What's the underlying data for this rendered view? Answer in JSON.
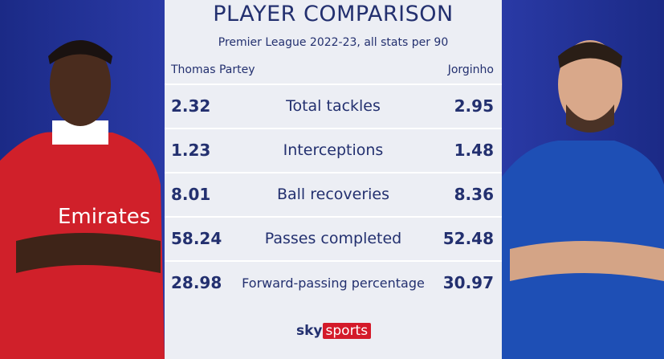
{
  "header": {
    "title": "PLAYER COMPARISON",
    "subtitle": "Premier League 2022-23, all stats per 90"
  },
  "players": {
    "left": "Thomas Partey",
    "right": "Jorginho"
  },
  "rows": [
    {
      "left": "2.32",
      "label": "Total tackles",
      "right": "2.95"
    },
    {
      "left": "1.23",
      "label": "Interceptions",
      "right": "1.48"
    },
    {
      "left": "8.01",
      "label": "Ball recoveries",
      "right": "8.36"
    },
    {
      "left": "58.24",
      "label": "Passes completed",
      "right": "52.48"
    },
    {
      "left": "28.98",
      "label": "Forward-passing percentage",
      "right": "30.97"
    }
  ],
  "logo": {
    "sky": "sky",
    "sports": "sports"
  }
}
